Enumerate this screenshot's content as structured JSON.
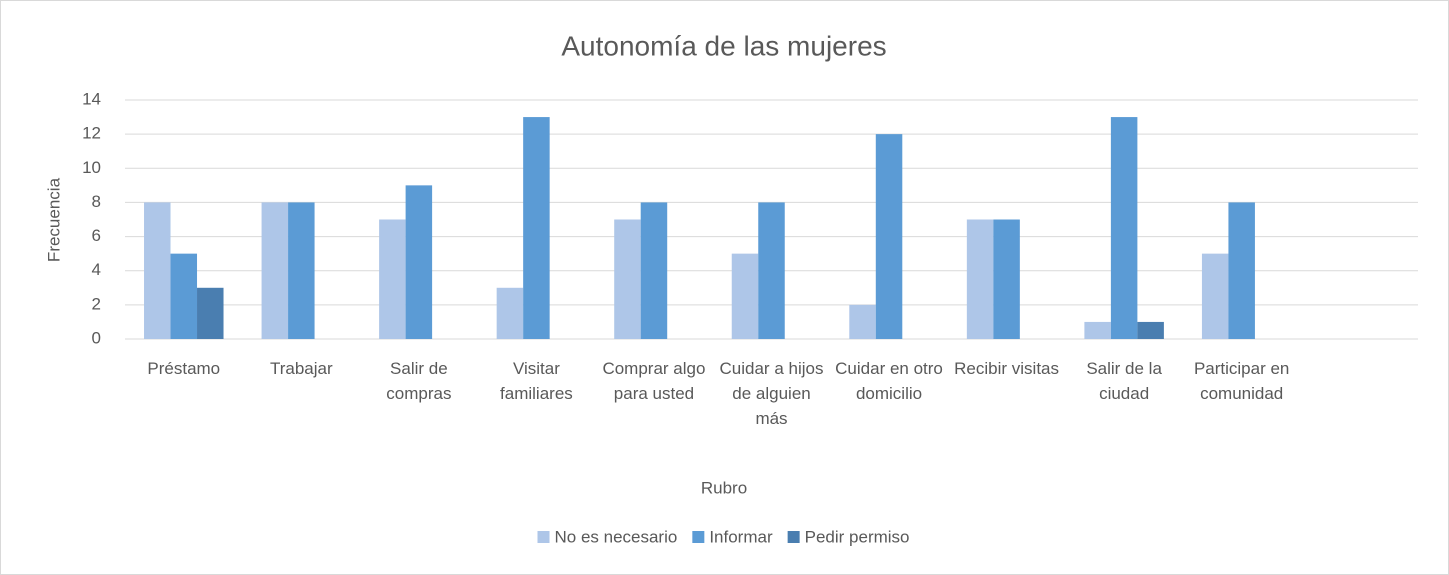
{
  "chart_data": {
    "type": "bar",
    "title": "Autonomía de las mujeres",
    "x_label": "Rubro",
    "y_label": "Frecuencia",
    "categories": [
      "Préstamo",
      "Trabajar",
      "Salir de compras",
      "Visitar familiares",
      "Comprar algo para usted",
      "Cuidar a hijos de alguien más",
      "Cuidar en otro domicilio",
      "Recibir visitas",
      "Salir de la ciudad",
      "Participar en comunidad",
      null
    ],
    "series": [
      {
        "name": "No es necesario",
        "color": "#aec6e8",
        "values": [
          8,
          8,
          7,
          3,
          7,
          5,
          2,
          7,
          1,
          5,
          null
        ]
      },
      {
        "name": "Informar",
        "color": "#5b9bd5",
        "values": [
          5,
          8,
          9,
          13,
          8,
          8,
          12,
          7,
          13,
          8,
          null
        ]
      },
      {
        "name": "Pedir permiso",
        "color": "#4a7eb0",
        "values": [
          3,
          null,
          null,
          null,
          null,
          null,
          null,
          null,
          1,
          null,
          null
        ]
      }
    ],
    "ylim": [
      0,
      14
    ],
    "yticks": [
      0,
      2,
      4,
      6,
      8,
      10,
      12,
      14
    ],
    "grid": true,
    "legend": "bottom"
  }
}
